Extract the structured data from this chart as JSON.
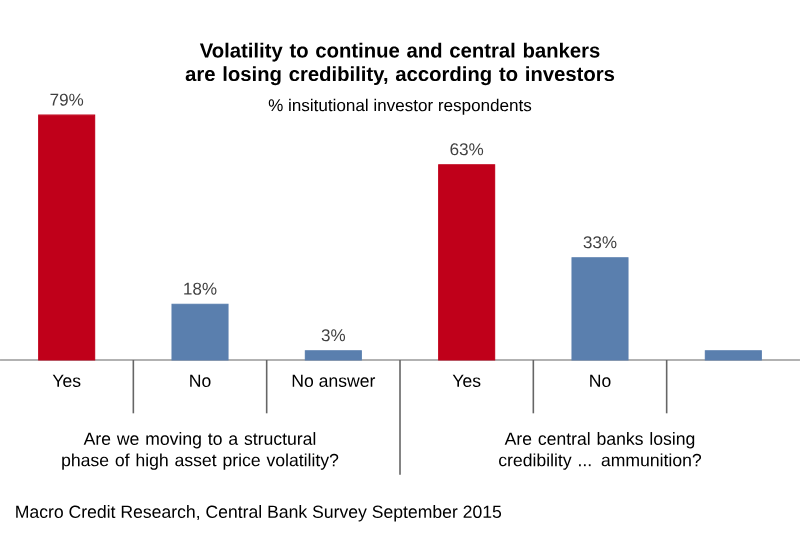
{
  "chart_data": {
    "type": "bar",
    "title": "Volatility to continue and central bankers are losing credibility, according to investors",
    "subtitle": "% insitutional investor respondents",
    "categories": [
      "Yes",
      "No",
      "No answer",
      "Yes",
      "No",
      null
    ],
    "values": [
      79,
      18,
      3,
      63,
      33,
      3
    ],
    "value_labels": [
      "79%",
      "18%",
      "3%",
      "63%",
      "33%",
      null
    ],
    "colors": [
      "#c0001a",
      "#5a7fae",
      "#5a7fae",
      "#c0001a",
      "#5a7fae",
      "#5a7fae"
    ],
    "annotations": [
      "Are we moving to a structural phase of high asset price volatility?",
      "Are central banks losing credibility ... ammunition?",
      "Macro Credit Research, Central Bank Survey September 2015"
    ]
  }
}
